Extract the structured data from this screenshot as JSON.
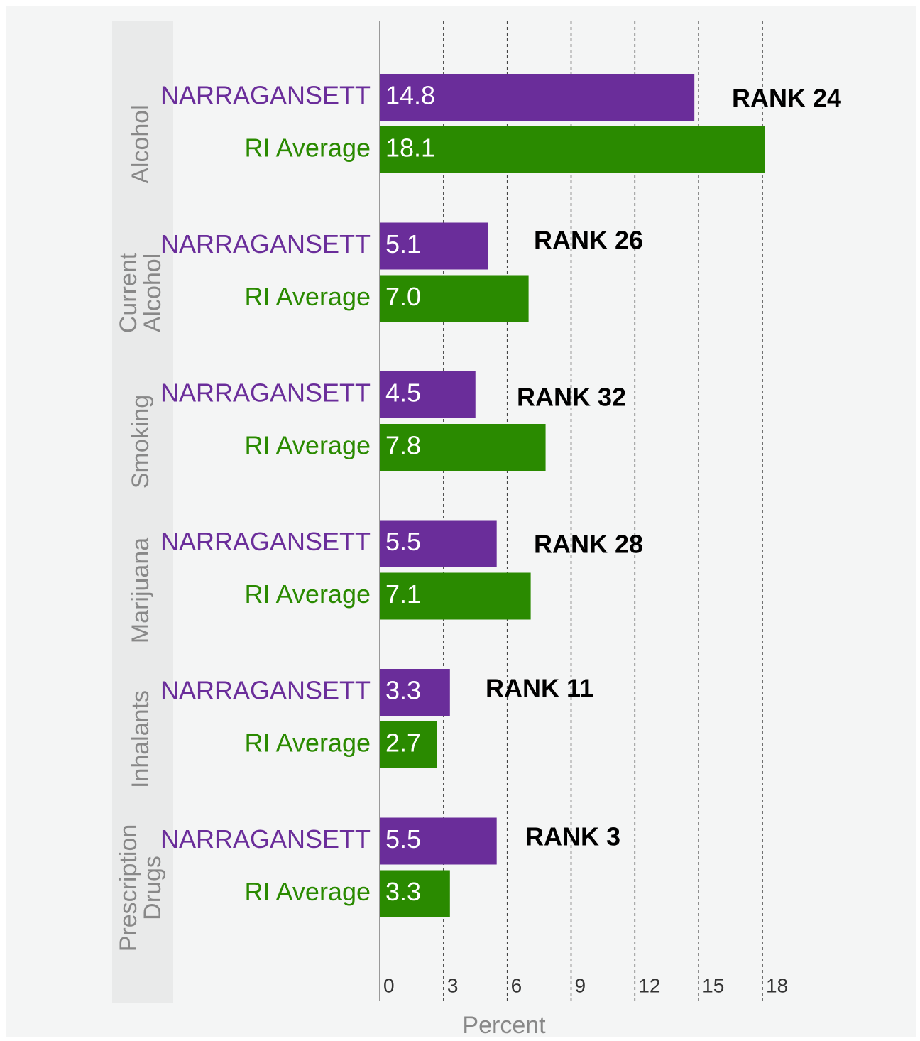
{
  "chart_data": {
    "type": "bar",
    "orientation": "horizontal",
    "categories": [
      "Alcohol",
      "Current Alcohol",
      "Smoking",
      "Marijuana",
      "Inhalants",
      "Prescription Drugs"
    ],
    "series": [
      {
        "name": "NARRAGANSETT",
        "color": "#6a2d9a",
        "values": [
          14.8,
          5.1,
          4.5,
          5.5,
          3.3,
          5.5
        ],
        "value_labels": [
          "14.8",
          "5.1",
          "4.5",
          "5.5",
          "3.3",
          "5.5"
        ]
      },
      {
        "name": "RI Average",
        "color": "#2a8a00",
        "values": [
          18.1,
          7.0,
          7.8,
          7.1,
          2.7,
          3.3
        ],
        "value_labels": [
          "18.1",
          "7.0",
          "7.8",
          "7.1",
          "2.7",
          "3.3"
        ]
      }
    ],
    "annotations": [
      "RANK 24",
      "RANK 26",
      "RANK 32",
      "RANK 28",
      "RANK 11",
      "RANK 3"
    ],
    "xlabel": "Percent",
    "xlim": [
      0,
      18
    ],
    "xticks": [
      0,
      3,
      6,
      9,
      12,
      15,
      18
    ],
    "grid": true
  }
}
